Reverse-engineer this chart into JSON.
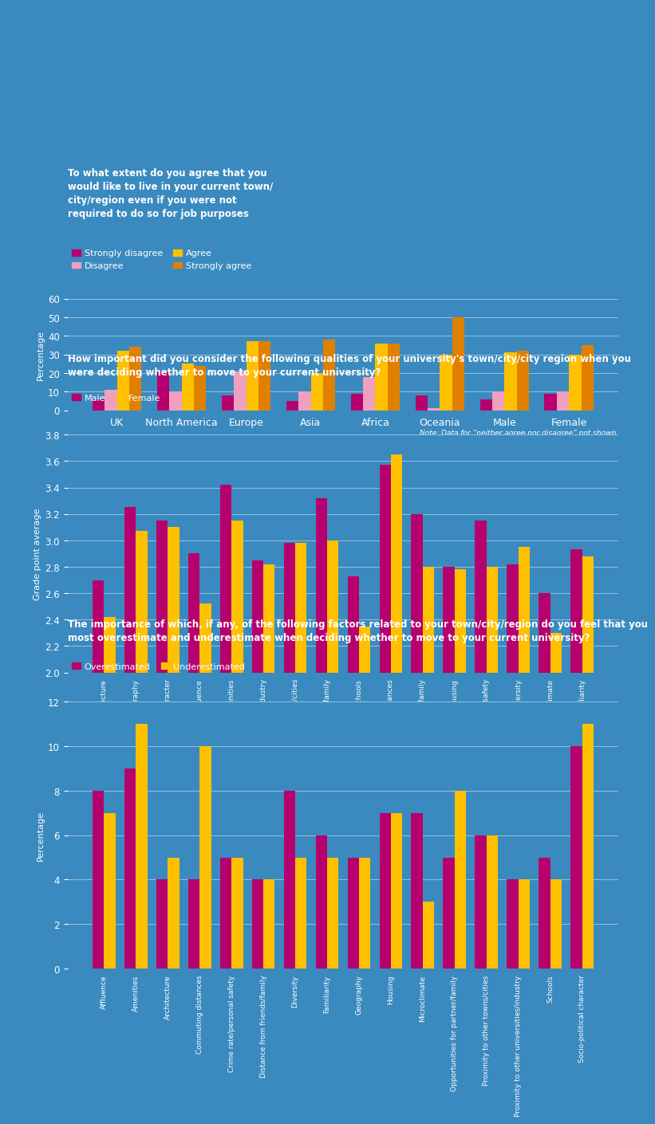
{
  "chart1": {
    "title": "To what extent do you agree that you\nwould like to live in your current town/\ncity/region even if you were not\nrequired to do so for job purposes",
    "categories": [
      "UK",
      "North America",
      "Europe",
      "Asia",
      "Africa",
      "Oceania",
      "Male",
      "Female"
    ],
    "series_order": [
      "Strongly disagree",
      "Disagree",
      "Agree",
      "Strongly agree"
    ],
    "series": {
      "Strongly disagree": [
        6,
        21,
        8,
        5,
        9,
        8,
        6,
        9
      ],
      "Disagree": [
        11,
        10,
        21,
        10,
        18,
        1,
        10,
        10
      ],
      "Agree": [
        32,
        25,
        37,
        20,
        36,
        30,
        31,
        30
      ],
      "Strongly agree": [
        34,
        24,
        37,
        38,
        36,
        50,
        32,
        35
      ]
    },
    "colors": {
      "Strongly disagree": "#b5006e",
      "Disagree": "#f0a0be",
      "Agree": "#ffc000",
      "Strongly agree": "#e08000"
    },
    "ylim": [
      0,
      60
    ],
    "yticks": [
      0,
      10,
      20,
      30,
      40,
      50,
      60
    ],
    "ylabel": "Percentage",
    "note": "Note: Data for “neither agree nor disagree” not shown."
  },
  "chart2": {
    "title": "How important did you consider the following qualities of your university's town/city/city region when you\nwere deciding whether to move to your current university?",
    "categories": [
      "Architecture",
      "Geography",
      "Socio-political character",
      "Affluence",
      "Amenities",
      "Proximity to other universities/industry",
      "Proximity to other towns/cities",
      "Opportunities for partner/family",
      "Schools",
      "Commuting distances",
      "Distance from friends/family",
      "Housing",
      "Crime rate/personal safety",
      "Diversity",
      "Microclimate",
      "Familiarity"
    ],
    "series_order": [
      "Male",
      "Female"
    ],
    "series": {
      "Male": [
        2.7,
        3.25,
        3.15,
        2.9,
        3.42,
        2.85,
        2.98,
        3.32,
        2.73,
        3.57,
        3.2,
        2.8,
        3.15,
        2.82,
        2.6,
        2.93
      ],
      "Female": [
        2.42,
        3.07,
        3.1,
        2.52,
        3.15,
        2.82,
        2.98,
        3.0,
        2.35,
        3.65,
        2.8,
        2.78,
        2.8,
        2.95,
        2.3,
        2.88
      ]
    },
    "colors": {
      "Male": "#b5006e",
      "Female": "#ffc000"
    },
    "ylim": [
      2.0,
      3.8
    ],
    "yticks": [
      2.0,
      2.2,
      2.4,
      2.6,
      2.8,
      3.0,
      3.2,
      3.4,
      3.6,
      3.8
    ],
    "ylabel": "Grade point average"
  },
  "chart3": {
    "title": "The importance of which, if any, of the following factors related to your town/city/region do you feel that you\nmost overestimate and underestimate when deciding whether to move to your current university?",
    "categories": [
      "Affluence",
      "Amenities",
      "Architecture",
      "Commuting distances",
      "Crime rate/personal safety",
      "Distance from friends/family",
      "Diversity",
      "Familiarity",
      "Geography",
      "Housing",
      "Microclimate",
      "Opportunities for partner/family",
      "Proximity to other towns/cities",
      "Proximity to other universities/industry",
      "Schools",
      "Socio-political character"
    ],
    "series_order": [
      "Overestimated",
      "Underestimated"
    ],
    "series": {
      "Overestimated": [
        8,
        9,
        4,
        4,
        5,
        4,
        8,
        6,
        5,
        7,
        7,
        5,
        6,
        4,
        5,
        10
      ],
      "Underestimated": [
        7,
        11,
        5,
        10,
        5,
        4,
        5,
        5,
        5,
        7,
        3,
        8,
        6,
        4,
        4,
        11
      ]
    },
    "colors": {
      "Overestimated": "#b5006e",
      "Underestimated": "#ffc000"
    },
    "ylim": [
      0,
      12
    ],
    "yticks": [
      0,
      2,
      4,
      6,
      8,
      10,
      12
    ],
    "ylabel": "Percentage"
  },
  "bg_color": "#3a8abf",
  "text_color": "white",
  "grid_color": "white"
}
